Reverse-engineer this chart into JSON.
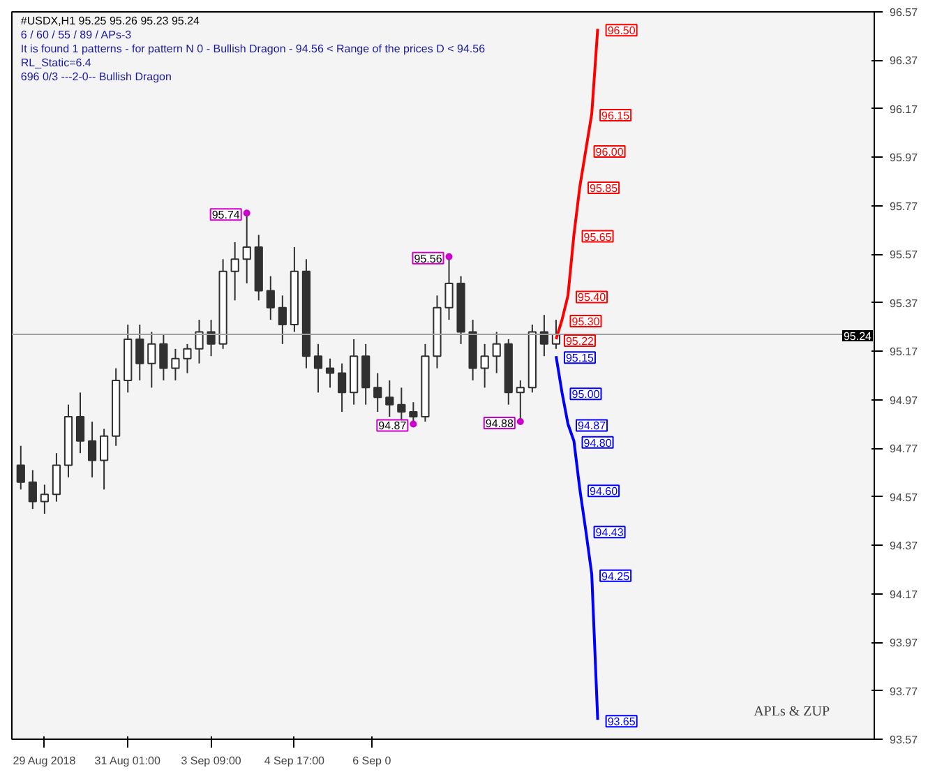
{
  "chart_data": {
    "type": "candlestick",
    "title": "#USDX,H1  95.25 95.26 95.23 95.24",
    "annotations": [
      "6 / 60 / 55 / 89 / APs-3",
      "It is found 1 patterns  -  for pattern N 0 - Bullish Dragon - 94.56 < Range of the prices D < 94.56",
      "RL_Static=6.4",
      "696     0/3          ---2-0--       Bullish Dragon",
      "APLs & ZUP"
    ],
    "categories": [
      null,
      null,
      null,
      null,
      null,
      "29 Aug 2018",
      null,
      null,
      null,
      null,
      null,
      null,
      null,
      null,
      null,
      null,
      null,
      null,
      null,
      "31 Aug 01:00",
      null,
      null,
      null,
      null,
      null,
      null,
      null,
      null,
      null,
      null,
      null,
      null,
      null,
      "3 Sep 09:00",
      null,
      null,
      null,
      null,
      null,
      null,
      null,
      null,
      null,
      null,
      null,
      null,
      null,
      "4 Sep 17:00",
      null,
      null,
      null,
      null,
      null,
      null,
      null,
      null,
      null,
      null,
      null,
      null,
      "6 Sep 0",
      null,
      null,
      null,
      null,
      null,
      null,
      null,
      null,
      null,
      null,
      null,
      null,
      null,
      null,
      null,
      null,
      null,
      null,
      null,
      null,
      null,
      null,
      null,
      null,
      null,
      null,
      null,
      null,
      null,
      null,
      null,
      null,
      null,
      null,
      null,
      null,
      null,
      null,
      null,
      null,
      null,
      null,
      null,
      null,
      null,
      null,
      null,
      null,
      null,
      null,
      null,
      null,
      null,
      null,
      null,
      null,
      null,
      null,
      null,
      null,
      null,
      null,
      null,
      null,
      null,
      null,
      null,
      null,
      null,
      null,
      null,
      null,
      null,
      null,
      null,
      null,
      null,
      null,
      null,
      null,
      null,
      null,
      null,
      null
    ],
    "ohlc": [
      null,
      [
        94.7,
        94.78,
        94.6,
        94.63
      ],
      null,
      [
        94.63,
        94.68,
        94.52,
        94.55
      ],
      null,
      [
        94.55,
        94.62,
        94.5,
        94.58
      ],
      null,
      [
        94.58,
        94.75,
        94.55,
        94.7
      ],
      null,
      [
        94.7,
        94.95,
        94.65,
        94.9
      ],
      null,
      [
        94.9,
        95.0,
        94.75,
        94.8
      ],
      null,
      [
        94.8,
        94.88,
        94.65,
        94.72
      ],
      null,
      [
        94.72,
        94.85,
        94.6,
        94.82
      ],
      null,
      [
        94.82,
        95.1,
        94.78,
        95.05
      ],
      null,
      [
        95.05,
        95.28,
        95.0,
        95.22
      ],
      null,
      [
        95.22,
        95.28,
        95.05,
        95.12
      ],
      null,
      [
        95.12,
        95.25,
        95.02,
        95.2
      ],
      null,
      [
        95.2,
        95.24,
        95.05,
        95.1
      ],
      null,
      [
        95.1,
        95.18,
        95.05,
        95.14
      ],
      null,
      [
        95.14,
        95.2,
        95.08,
        95.18
      ],
      null,
      [
        95.18,
        95.3,
        95.12,
        95.25
      ],
      null,
      [
        95.25,
        95.3,
        95.15,
        95.2
      ],
      null,
      [
        95.2,
        95.55,
        95.18,
        95.5
      ],
      null,
      [
        95.5,
        95.62,
        95.38,
        95.55
      ],
      null,
      [
        95.55,
        95.74,
        95.45,
        95.6
      ],
      null,
      [
        95.6,
        95.65,
        95.38,
        95.42
      ],
      null,
      [
        95.42,
        95.48,
        95.3,
        95.35
      ],
      null,
      [
        95.35,
        95.4,
        95.2,
        95.28
      ],
      null,
      [
        95.28,
        95.6,
        95.25,
        95.5
      ],
      null,
      [
        95.5,
        95.55,
        95.1,
        95.15
      ],
      null,
      [
        95.15,
        95.2,
        95.0,
        95.1
      ],
      null,
      [
        95.1,
        95.14,
        95.02,
        95.08
      ],
      null,
      [
        95.08,
        95.12,
        94.92,
        95.0
      ],
      null,
      [
        95.0,
        95.22,
        94.95,
        95.15
      ],
      null,
      [
        95.15,
        95.2,
        94.95,
        95.02
      ],
      null,
      [
        95.02,
        95.08,
        94.92,
        94.98
      ],
      null,
      [
        94.98,
        95.05,
        94.9,
        94.95
      ],
      null,
      [
        94.95,
        95.02,
        94.88,
        94.92
      ],
      null,
      [
        94.92,
        94.96,
        94.87,
        94.9
      ],
      null,
      [
        94.9,
        95.2,
        94.88,
        95.15
      ],
      null,
      [
        95.15,
        95.4,
        95.1,
        95.35
      ],
      null,
      [
        95.35,
        95.56,
        95.3,
        95.45
      ],
      null,
      [
        95.45,
        95.48,
        95.2,
        95.25
      ],
      null,
      [
        95.25,
        95.3,
        95.05,
        95.1
      ],
      null,
      [
        95.1,
        95.2,
        95.02,
        95.15
      ],
      null,
      [
        95.15,
        95.25,
        95.08,
        95.2
      ],
      null,
      [
        95.2,
        95.22,
        94.95,
        95.0
      ],
      null,
      [
        95.0,
        95.05,
        94.88,
        95.02
      ],
      null,
      [
        95.02,
        95.28,
        95.0,
        95.25
      ],
      null,
      [
        95.25,
        95.32,
        95.15,
        95.2
      ],
      null,
      [
        95.2,
        95.3,
        95.18,
        95.24
      ],
      null,
      null,
      null,
      null,
      null,
      null,
      null,
      null,
      null,
      null,
      null,
      null,
      null,
      null,
      null,
      null,
      null,
      null,
      null,
      null,
      null,
      null,
      null,
      null,
      null,
      null,
      null,
      null,
      null,
      null,
      null,
      null,
      null,
      null,
      null,
      null,
      null,
      null,
      null,
      null,
      null,
      null,
      null,
      null,
      null,
      null,
      null,
      null,
      null,
      null,
      null,
      null,
      null
    ],
    "series": [
      {
        "type": "line",
        "color": "#ff0000",
        "values": [
          null,
          null,
          null,
          null,
          null,
          null,
          null,
          null,
          null,
          null,
          null,
          null,
          null,
          null,
          null,
          null,
          null,
          null,
          null,
          null,
          null,
          null,
          null,
          null,
          null,
          null,
          null,
          null,
          null,
          null,
          null,
          null,
          null,
          null,
          null,
          null,
          null,
          null,
          null,
          null,
          null,
          null,
          null,
          null,
          null,
          null,
          null,
          null,
          null,
          null,
          null,
          null,
          null,
          null,
          null,
          null,
          null,
          null,
          null,
          null,
          null,
          null,
          null,
          null,
          null,
          null,
          null,
          null,
          null,
          null,
          null,
          null,
          null,
          null,
          null,
          null,
          null,
          null,
          null,
          null,
          null,
          null,
          null,
          null,
          null,
          null,
          null,
          null,
          null,
          null,
          null,
          95.22,
          95.3,
          95.4,
          95.65,
          95.85,
          96.0,
          96.15,
          96.5,
          null,
          null,
          null,
          null,
          null,
          null,
          null,
          null,
          null,
          null,
          null,
          null,
          null,
          null,
          null,
          null,
          null,
          null,
          null,
          null,
          null,
          null,
          null,
          null,
          null,
          null,
          null,
          null,
          null,
          null,
          null,
          null,
          null,
          null,
          null,
          null,
          null,
          null,
          null,
          null,
          null,
          null,
          null,
          null,
          null,
          null
        ],
        "value_labels": [
          null,
          null,
          null,
          null,
          null,
          null,
          null,
          null,
          null,
          null,
          null,
          null,
          null,
          null,
          null,
          null,
          null,
          null,
          null,
          null,
          null,
          null,
          null,
          null,
          null,
          null,
          null,
          null,
          null,
          null,
          null,
          null,
          null,
          null,
          null,
          null,
          null,
          null,
          null,
          null,
          null,
          null,
          null,
          null,
          null,
          null,
          null,
          null,
          null,
          null,
          null,
          null,
          null,
          null,
          null,
          null,
          null,
          null,
          null,
          null,
          null,
          null,
          null,
          null,
          null,
          null,
          null,
          null,
          null,
          null,
          null,
          null,
          null,
          null,
          null,
          null,
          null,
          null,
          null,
          null,
          null,
          null,
          null,
          null,
          null,
          null,
          null,
          null,
          null,
          null,
          null,
          "95.22",
          "95.30",
          "95.40",
          "95.65",
          "95.85",
          "96.00",
          "96.15",
          "96.50",
          null,
          null,
          null,
          null,
          null,
          null,
          null,
          null,
          null,
          null,
          null,
          null,
          null,
          null,
          null,
          null,
          null,
          null,
          null,
          null,
          null,
          null,
          null,
          null,
          null,
          null,
          null,
          null,
          null,
          null,
          null,
          null,
          null,
          null,
          null,
          null,
          null,
          null,
          null,
          null,
          null,
          null,
          null,
          null,
          null,
          null
        ]
      },
      {
        "type": "line",
        "color": "#0000ff",
        "values": [
          null,
          null,
          null,
          null,
          null,
          null,
          null,
          null,
          null,
          null,
          null,
          null,
          null,
          null,
          null,
          null,
          null,
          null,
          null,
          null,
          null,
          null,
          null,
          null,
          null,
          null,
          null,
          null,
          null,
          null,
          null,
          null,
          null,
          null,
          null,
          null,
          null,
          null,
          null,
          null,
          null,
          null,
          null,
          null,
          null,
          null,
          null,
          null,
          null,
          null,
          null,
          null,
          null,
          null,
          null,
          null,
          null,
          null,
          null,
          null,
          null,
          null,
          null,
          null,
          null,
          null,
          null,
          null,
          null,
          null,
          null,
          null,
          null,
          null,
          null,
          null,
          null,
          null,
          null,
          null,
          null,
          null,
          null,
          null,
          null,
          null,
          null,
          null,
          null,
          null,
          null,
          95.15,
          95.0,
          94.87,
          94.8,
          94.6,
          94.43,
          94.25,
          93.65,
          null,
          null,
          null,
          null,
          null,
          null,
          null,
          null,
          null,
          null,
          null,
          null,
          null,
          null,
          null,
          null,
          null,
          null,
          null,
          null,
          null,
          null,
          null,
          null,
          null,
          null,
          null,
          null,
          null,
          null,
          null,
          null,
          null,
          null,
          null,
          null,
          null,
          null,
          null,
          null,
          null,
          null,
          null,
          null,
          null,
          null
        ],
        "value_labels": [
          null,
          null,
          null,
          null,
          null,
          null,
          null,
          null,
          null,
          null,
          null,
          null,
          null,
          null,
          null,
          null,
          null,
          null,
          null,
          null,
          null,
          null,
          null,
          null,
          null,
          null,
          null,
          null,
          null,
          null,
          null,
          null,
          null,
          null,
          null,
          null,
          null,
          null,
          null,
          null,
          null,
          null,
          null,
          null,
          null,
          null,
          null,
          null,
          null,
          null,
          null,
          null,
          null,
          null,
          null,
          null,
          null,
          null,
          null,
          null,
          null,
          null,
          null,
          null,
          null,
          null,
          null,
          null,
          null,
          null,
          null,
          null,
          null,
          null,
          null,
          null,
          null,
          null,
          null,
          null,
          null,
          null,
          null,
          null,
          null,
          null,
          null,
          null,
          null,
          null,
          null,
          "95.15",
          "95.00",
          "94.87",
          "94.80",
          "94.60",
          "94.43",
          "94.25",
          "93.65",
          null,
          null,
          null,
          null,
          null,
          null,
          null,
          null,
          null,
          null,
          null,
          null,
          null,
          null,
          null,
          null,
          null,
          null,
          null,
          null,
          null,
          null,
          null,
          null,
          null,
          null,
          null,
          null,
          null,
          null,
          null,
          null,
          null,
          null,
          null,
          null,
          null,
          null,
          null,
          null,
          null,
          null,
          null,
          null,
          null,
          null
        ]
      },
      {
        "type": "scatter",
        "color": "#cc00cc",
        "values": [
          null,
          null,
          null,
          null,
          null,
          null,
          null,
          null,
          null,
          null,
          null,
          null,
          null,
          null,
          null,
          null,
          null,
          null,
          null,
          null,
          null,
          null,
          null,
          null,
          null,
          null,
          null,
          null,
          null,
          null,
          null,
          null,
          null,
          null,
          null,
          null,
          null,
          null,
          null,
          95.74,
          null,
          null,
          null,
          null,
          null,
          null,
          null,
          null,
          null,
          null,
          null,
          null,
          null,
          null,
          null,
          null,
          null,
          null,
          null,
          null,
          null,
          null,
          null,
          null,
          null,
          null,
          null,
          94.87,
          null,
          null,
          null,
          null,
          null,
          95.56,
          null,
          null,
          null,
          null,
          null,
          null,
          null,
          null,
          null,
          null,
          null,
          94.88,
          null,
          null,
          null,
          null,
          null,
          null,
          null,
          null,
          null,
          null,
          null,
          null,
          null,
          null,
          null,
          null,
          null,
          null,
          null,
          null,
          null,
          null,
          null,
          null,
          null,
          null,
          null,
          null,
          null,
          null,
          null,
          null,
          null,
          null,
          null,
          null,
          null,
          null,
          null,
          null,
          null,
          null,
          null,
          null,
          null,
          null,
          null,
          null,
          null,
          null,
          null,
          null,
          null,
          null,
          null,
          null,
          null,
          null,
          null
        ],
        "value_labels": [
          null,
          null,
          null,
          null,
          null,
          null,
          null,
          null,
          null,
          null,
          null,
          null,
          null,
          null,
          null,
          null,
          null,
          null,
          null,
          null,
          null,
          null,
          null,
          null,
          null,
          null,
          null,
          null,
          null,
          null,
          null,
          null,
          null,
          null,
          null,
          null,
          null,
          null,
          null,
          "95.74",
          null,
          null,
          null,
          null,
          null,
          null,
          null,
          null,
          null,
          null,
          null,
          null,
          null,
          null,
          null,
          null,
          null,
          null,
          null,
          null,
          null,
          null,
          null,
          null,
          null,
          null,
          null,
          "94.87",
          null,
          null,
          null,
          null,
          null,
          "95.56",
          null,
          null,
          null,
          null,
          null,
          null,
          null,
          null,
          null,
          null,
          null,
          "94.88",
          null,
          null,
          null,
          null,
          null,
          null,
          null,
          null,
          null,
          null,
          null,
          null,
          null,
          null,
          null,
          null,
          null,
          null,
          null,
          null,
          null,
          null,
          null,
          null,
          null,
          null,
          null,
          null,
          null,
          null,
          null,
          null,
          null,
          null,
          null,
          null,
          null,
          null,
          null,
          null,
          null,
          null,
          null,
          null,
          null,
          null,
          null,
          null,
          null,
          null,
          null,
          null,
          null,
          null,
          null,
          null,
          null,
          null,
          null
        ]
      }
    ],
    "ref_lines": [
      {
        "axis": "y",
        "value": 95.24,
        "label": "95.24",
        "color": "#a0a0a0"
      }
    ],
    "ylim": [
      93.57,
      96.57
    ],
    "yticks": [
      93.57,
      93.77,
      93.97,
      94.17,
      94.37,
      94.57,
      94.77,
      94.97,
      95.17,
      95.37,
      95.57,
      95.77,
      95.97,
      96.17,
      96.37,
      96.57
    ],
    "grid": false
  }
}
